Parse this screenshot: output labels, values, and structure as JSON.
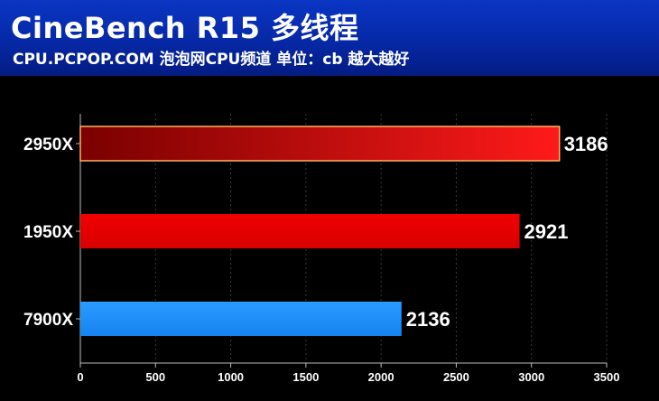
{
  "header": {
    "title": "CineBench R15 多线程",
    "subtitle": "CPU.PCPOP.COM 泡泡网CPU频道 单位：cb 越大越好"
  },
  "colors": {
    "header_bg": "#0628a6",
    "bar_highlight_start": "#8b0000",
    "bar_highlight_end": "#ff1a1a",
    "bar_red": "#e80000",
    "bar_blue": "#1e90ff",
    "grid": "#3a3a3a"
  },
  "chart_data": {
    "type": "bar",
    "orientation": "horizontal",
    "title": "CineBench R15 多线程",
    "subtitle": "CPU.PCPOP.COM 泡泡网CPU频道 单位：cb 越大越好",
    "categories": [
      "2950X",
      "1950X",
      "7900X"
    ],
    "values": [
      3186,
      2921,
      2136
    ],
    "bar_colors": [
      "gradient-red-highlight",
      "#e80000",
      "#1e90ff"
    ],
    "xlim": [
      0,
      3500
    ],
    "xticks": [
      0,
      500,
      1000,
      1500,
      2000,
      2500,
      3000,
      3500
    ],
    "xlabel": "",
    "ylabel": "",
    "grid": "vertical-dotted",
    "legend": "none"
  }
}
